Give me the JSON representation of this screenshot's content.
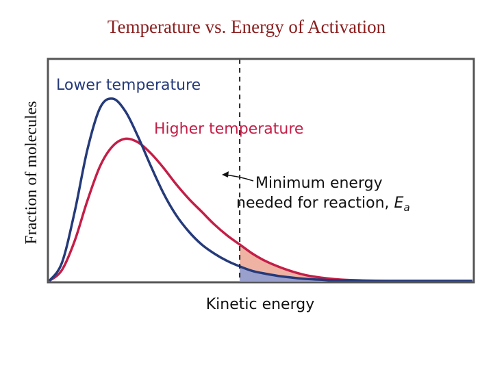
{
  "slide": {
    "title": "Temperature vs. Energy of Activation"
  },
  "colors": {
    "title": "#8B1E1E",
    "lower_curve": "#253a7a",
    "higher_curve": "#c41e47",
    "lower_fill": "#9aa0cc",
    "higher_fill": "#efb3a3",
    "frame": "#555555"
  },
  "chart_data": {
    "type": "line",
    "title": "",
    "xlabel": "Kinetic energy",
    "ylabel": "Fraction of molecules",
    "x_ticks": [],
    "y_ticks": [],
    "xlim": [
      0,
      10
    ],
    "ylim": [
      0,
      1
    ],
    "series": [
      {
        "name": "Lower temperature",
        "x": [
          0,
          0.3,
          0.6,
          0.9,
          1.2,
          1.5,
          1.8,
          2.1,
          2.4,
          2.7,
          3.0,
          3.3,
          3.6,
          3.9,
          4.2,
          4.5,
          4.8,
          5.1,
          5.4,
          5.7,
          6.0,
          6.3,
          6.6,
          6.9,
          7.2,
          7.5,
          8.0,
          8.5,
          9.0,
          9.5,
          10.0
        ],
        "values": [
          0,
          0.1,
          0.38,
          0.72,
          0.95,
          1.0,
          0.93,
          0.79,
          0.63,
          0.48,
          0.36,
          0.27,
          0.2,
          0.15,
          0.11,
          0.08,
          0.055,
          0.04,
          0.028,
          0.019,
          0.012,
          0.008,
          0.005,
          0.003,
          0.002,
          0.001,
          0,
          0,
          0,
          0,
          0
        ]
      },
      {
        "name": "Higher temperature",
        "x": [
          0,
          0.3,
          0.6,
          0.9,
          1.2,
          1.5,
          1.8,
          2.1,
          2.4,
          2.7,
          3.0,
          3.3,
          3.6,
          3.9,
          4.2,
          4.5,
          4.8,
          5.1,
          5.4,
          5.7,
          6.0,
          6.3,
          6.6,
          6.9,
          7.2,
          7.5,
          8.0,
          8.5,
          9.0,
          9.5,
          10.0
        ],
        "values": [
          0,
          0.06,
          0.22,
          0.44,
          0.63,
          0.74,
          0.78,
          0.76,
          0.7,
          0.62,
          0.53,
          0.45,
          0.38,
          0.31,
          0.25,
          0.2,
          0.15,
          0.11,
          0.08,
          0.055,
          0.035,
          0.022,
          0.013,
          0.007,
          0.004,
          0.002,
          0,
          0,
          0,
          0,
          0
        ]
      }
    ],
    "threshold": {
      "x": 4.5,
      "label_line1": "Minimum energy",
      "label_line2": "needed for reaction, ",
      "label_symbol": "E",
      "label_subscript": "a"
    },
    "annotations": [
      {
        "text": "Lower temperature",
        "series": "Lower temperature"
      },
      {
        "text": "Higher temperature",
        "series": "Higher temperature"
      }
    ],
    "legend": "none",
    "grid": false
  }
}
